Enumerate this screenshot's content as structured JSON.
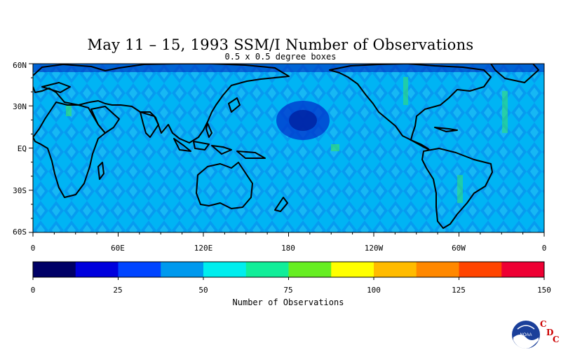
{
  "title": "May 11 – 15, 1993 SSM/I Number of Observations",
  "subtitle": "0.5 x 0.5 degree boxes",
  "lat_labels": [
    "60N",
    "30N",
    "EQ",
    "30S",
    "60S"
  ],
  "lon_labels": [
    "0",
    "60E",
    "120E",
    "180",
    "120W",
    "60W",
    "0"
  ],
  "colorbar": {
    "label": "Number of Observations",
    "ticks": [
      "0",
      "25",
      "50",
      "75",
      "100",
      "125",
      "150"
    ],
    "colors": [
      "#000066",
      "#0000dd",
      "#0044ff",
      "#0099ee",
      "#00eeee",
      "#11ee99",
      "#66ee22",
      "#ffff00",
      "#ffbb00",
      "#ff8800",
      "#ff4400",
      "#ee0033"
    ]
  },
  "logo": {
    "agency": "NOAA",
    "center": [
      "C",
      "D",
      "C"
    ]
  },
  "map_colors": {
    "ocean_base": "#00aaf0",
    "land_outline": "#000000"
  }
}
